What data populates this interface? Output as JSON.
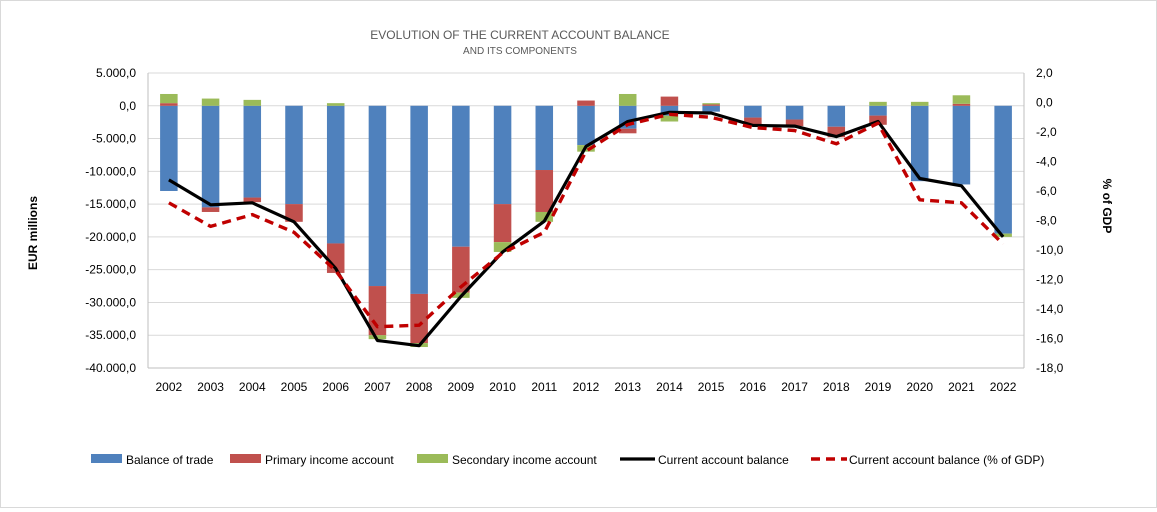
{
  "chart_data": {
    "type": "bar",
    "title": "EVOLUTION OF THE CURRENT ACCOUNT BALANCE",
    "subtitle": "AND ITS COMPONENTS",
    "ylabel": "EUR millions",
    "y2label": "% of GDP",
    "ylim": [
      -40000,
      5000
    ],
    "y2lim": [
      -18,
      2
    ],
    "yticks": [
      "5.000,0",
      "0,0",
      "-5.000,0",
      "-10.000,0",
      "-15.000,0",
      "-20.000,0",
      "-25.000,0",
      "-30.000,0",
      "-35.000,0",
      "-40.000,0"
    ],
    "y2ticks": [
      "2,0",
      "0,0",
      "-2,0",
      "-4,0",
      "-6,0",
      "-8,0",
      "-10,0",
      "-12,0",
      "-14,0",
      "-16,0",
      "-18,0"
    ],
    "categories": [
      "2002",
      "2003",
      "2004",
      "2005",
      "2006",
      "2007",
      "2008",
      "2009",
      "2010",
      "2011",
      "2012",
      "2013",
      "2014",
      "2015",
      "2016",
      "2017",
      "2018",
      "2019",
      "2020",
      "2021",
      "2022"
    ],
    "legend_position": "bottom",
    "grid": true,
    "series": [
      {
        "name": "Balance of trade",
        "kind": "stacked-bar",
        "color": "#4f81bd",
        "values": [
          -13000,
          -15500,
          -14000,
          -15000,
          -21000,
          -27500,
          -28700,
          -21500,
          -15000,
          -9800,
          -6000,
          -3500,
          -1500,
          -900,
          -1800,
          -2100,
          -3200,
          -1500,
          -11500,
          -12000,
          -19500
        ]
      },
      {
        "name": "Primary income account",
        "kind": "stacked-bar",
        "color": "#c0504d",
        "values": [
          400,
          -700,
          -700,
          -2700,
          -4500,
          -7500,
          -7500,
          -7000,
          -5800,
          -6400,
          800,
          -700,
          1400,
          200,
          -1100,
          -1000,
          -1600,
          -1400,
          0,
          300,
          0
        ]
      },
      {
        "name": "Secondary income account",
        "kind": "stacked-bar",
        "color": "#9bbb59",
        "values": [
          1400,
          1100,
          900,
          0,
          400,
          -600,
          -600,
          -800,
          -1500,
          -1500,
          -1000,
          1800,
          -900,
          200,
          0,
          0,
          0,
          600,
          600,
          1300,
          -500
        ]
      },
      {
        "name": "Current account balance",
        "kind": "line",
        "axis": "left",
        "color": "#000000",
        "values": [
          -11300,
          -15100,
          -14800,
          -17700,
          -24800,
          -35800,
          -36600,
          -29100,
          -22300,
          -17600,
          -6200,
          -2400,
          -1000,
          -1100,
          -3000,
          -3100,
          -4700,
          -2400,
          -11100,
          -12200,
          -20000
        ]
      },
      {
        "name": "Current account balance (% of GDP)",
        "kind": "dashed-line",
        "axis": "right",
        "color": "#c00000",
        "values": [
          -6.8,
          -8.4,
          -7.6,
          -8.8,
          -11.4,
          -15.2,
          -15.1,
          -12.5,
          -10.2,
          -8.8,
          -3.3,
          -1.5,
          -0.8,
          -1.0,
          -1.7,
          -1.9,
          -2.8,
          -1.4,
          -6.6,
          -6.8,
          -9.6
        ]
      }
    ]
  }
}
